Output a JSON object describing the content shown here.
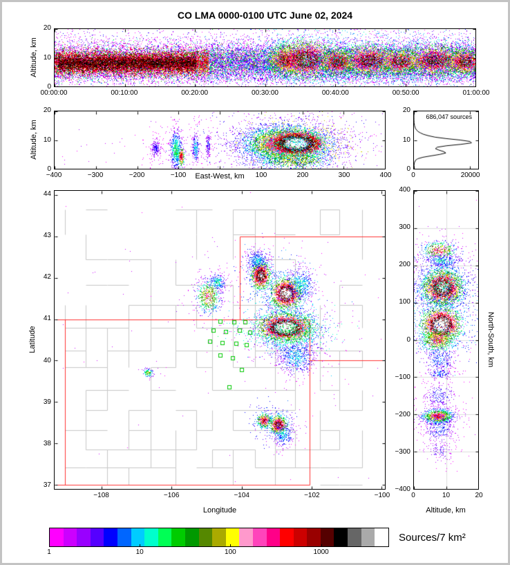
{
  "title": "CO LMA 0000-0100 UTC June 02, 2024",
  "chart_data": {
    "type": "scatter",
    "total_sources": "686,047",
    "palette": [
      "#ff00ff",
      "#cc00ff",
      "#9900ff",
      "#5500ff",
      "#0000ff",
      "#0066ff",
      "#00ccff",
      "#00ffcc",
      "#00ff55",
      "#00cc00",
      "#009900",
      "#558800",
      "#aaaa00",
      "#ffff00",
      "#ff99cc",
      "#ff44bb",
      "#ff0088",
      "#ff0000",
      "#cc0000",
      "#990000",
      "#550000",
      "#000000",
      "#666666",
      "#aaaaaa",
      "#ffffff"
    ],
    "colorbar": {
      "label": "Sources/7 km²",
      "tick_values": [
        1,
        10,
        100,
        1000
      ],
      "tick_labels": [
        "1",
        "10",
        "100",
        "1000"
      ],
      "log_max": 5623
    },
    "panels": {
      "time_height": {
        "ylabel": "Altitude, km",
        "xlim": [
          0,
          3600
        ],
        "ylim": [
          0,
          20
        ],
        "xticks": {
          "values": [
            0,
            600,
            1200,
            1800,
            2400,
            3000,
            3600
          ],
          "labels": [
            "00:00:00",
            "00:10:00",
            "00:20:00",
            "00:30:00",
            "00:40:00",
            "00:50:00",
            "01:00:00"
          ]
        },
        "yticks": {
          "values": [
            0,
            10,
            20
          ],
          "labels": [
            "0",
            "10",
            "20"
          ]
        },
        "clusters": [
          {
            "k": "u",
            "n": 14000,
            "x": 1800,
            "sx": 1800,
            "y": 8.3,
            "sy": 3.2,
            "lo": 0,
            "hi": 0.4,
            "pw": 2.4
          },
          {
            "k": "u",
            "n": 4500,
            "x": 1800,
            "sx": 1800,
            "y": 10,
            "sy": 4.8,
            "lo": 0,
            "hi": 0.16,
            "pw": 1.5
          },
          {
            "k": "u",
            "n": 1500,
            "x": 1800,
            "sx": 1800,
            "y": 4,
            "sy": 1.5,
            "lo": 0,
            "hi": 0.3,
            "pw": 2
          },
          {
            "k": "u",
            "n": 11000,
            "x": 660,
            "sx": 660,
            "y": 8.2,
            "sy": 2.1,
            "lo": 0.28,
            "hi": 0.8,
            "pw": 0.75
          },
          {
            "k": "u",
            "n": 8000,
            "x": 620,
            "sx": 590,
            "y": 8.1,
            "sy": 1.3,
            "lo": 0.6,
            "hi": 0.9,
            "pw": 0.9
          },
          {
            "k": "u",
            "n": 6000,
            "x": 2460,
            "sx": 1140,
            "y": 8.6,
            "sy": 2.7,
            "lo": 0.06,
            "hi": 0.6,
            "pw": 1.7
          },
          {
            "k": "g",
            "n": 1600,
            "x": 1980,
            "y": 9.2,
            "sx": 80,
            "sy": 2.6,
            "lo": 0.15,
            "hi": 0.75
          },
          {
            "k": "g",
            "n": 2200,
            "x": 2150,
            "y": 9.4,
            "sx": 110,
            "sy": 2.9,
            "lo": 0.2,
            "hi": 0.85
          },
          {
            "k": "g",
            "n": 1400,
            "x": 2420,
            "y": 8.4,
            "sx": 70,
            "sy": 2.2,
            "lo": 0.15,
            "hi": 0.8
          },
          {
            "k": "g",
            "n": 1900,
            "x": 2690,
            "y": 9,
            "sx": 110,
            "sy": 2.4,
            "lo": 0.2,
            "hi": 0.8
          },
          {
            "k": "g",
            "n": 1400,
            "x": 2950,
            "y": 8.7,
            "sx": 85,
            "sy": 2.2,
            "lo": 0.15,
            "hi": 0.78
          },
          {
            "k": "g",
            "n": 2000,
            "x": 3260,
            "y": 9,
            "sx": 130,
            "sy": 2.4,
            "lo": 0.2,
            "hi": 0.8
          },
          {
            "k": "g",
            "n": 1300,
            "x": 3510,
            "y": 8.6,
            "sx": 75,
            "sy": 2.1,
            "lo": 0.15,
            "hi": 0.8
          }
        ]
      },
      "east_west": {
        "xlabel": "East-West, km",
        "ylabel": "Altitude, km",
        "xlim": [
          -400,
          400
        ],
        "ylim": [
          0,
          20
        ],
        "xticks": {
          "values": [
            -400,
            -300,
            -200,
            -100,
            0,
            100,
            200,
            300,
            400
          ],
          "labels": [
            "−400",
            "−300",
            "−200",
            "−100",
            "",
            "100",
            "200",
            "300",
            "400"
          ]
        },
        "yticks": {
          "values": [
            0,
            10,
            20
          ],
          "labels": [
            "0",
            "10",
            "20"
          ]
        },
        "clusters": [
          {
            "k": "u",
            "n": 60,
            "x": 0,
            "sx": 390,
            "y": 8,
            "sy": 3.5,
            "lo": 0,
            "hi": 0.08,
            "pw": 1
          },
          {
            "k": "g",
            "n": 220,
            "x": -155,
            "y": 7,
            "sx": 6,
            "sy": 1.6,
            "lo": 0,
            "hi": 0.14
          },
          {
            "k": "g",
            "n": 650,
            "x": -106,
            "y": 6.5,
            "sx": 7,
            "sy": 3.2,
            "lo": 0,
            "hi": 0.32
          },
          {
            "k": "g",
            "n": 280,
            "x": -93,
            "y": 4.2,
            "sx": 3,
            "sy": 1.3,
            "lo": 0.2,
            "hi": 0.72
          },
          {
            "k": "g",
            "n": 220,
            "x": -58,
            "y": 7,
            "sx": 4,
            "sy": 2.6,
            "lo": 0,
            "hi": 0.26
          },
          {
            "k": "g",
            "n": 130,
            "x": -28,
            "y": 8.5,
            "sx": 3,
            "sy": 2,
            "lo": 0,
            "hi": 0.16
          },
          {
            "k": "g",
            "n": 5500,
            "x": 163,
            "y": 8.6,
            "sx": 45,
            "sy": 2.7,
            "lo": 0.06,
            "hi": 0.76
          },
          {
            "k": "g",
            "n": 4500,
            "x": 186,
            "y": 8.8,
            "sx": 27,
            "sy": 1.8,
            "lo": 0.5,
            "hi": 1
          },
          {
            "k": "g",
            "n": 1400,
            "x": 158,
            "y": 8,
            "sx": 68,
            "sy": 4.3,
            "lo": 0,
            "hi": 0.3
          },
          {
            "k": "g",
            "n": 700,
            "x": 180,
            "y": 3,
            "sx": 42,
            "sy": 1.6,
            "lo": 0.1,
            "hi": 0.5
          }
        ]
      },
      "histogram": {
        "annotation": "686,047 sources",
        "xlim": [
          0,
          23000
        ],
        "ylim": [
          0,
          20
        ],
        "xticks": {
          "values": [
            0,
            20000
          ],
          "labels": [
            "0",
            "20000"
          ]
        },
        "yticks": {
          "values": [
            0,
            10,
            20
          ],
          "labels": [
            "0",
            "10",
            "20"
          ]
        },
        "curve": [
          [
            0,
            0
          ],
          [
            1,
            30
          ],
          [
            2,
            120
          ],
          [
            3,
            600
          ],
          [
            3.5,
            1400
          ],
          [
            4,
            3200
          ],
          [
            4.5,
            6200
          ],
          [
            5,
            9300
          ],
          [
            5.5,
            11400
          ],
          [
            6,
            10600
          ],
          [
            6.5,
            8900
          ],
          [
            7,
            7700
          ],
          [
            7.5,
            8300
          ],
          [
            8,
            11600
          ],
          [
            8.5,
            16800
          ],
          [
            9,
            20600
          ],
          [
            9.5,
            20100
          ],
          [
            10,
            16600
          ],
          [
            10.5,
            11600
          ],
          [
            11,
            7600
          ],
          [
            11.5,
            5200
          ],
          [
            12,
            3400
          ],
          [
            12.5,
            2300
          ],
          [
            13,
            1400
          ],
          [
            14,
            560
          ],
          [
            15,
            210
          ],
          [
            16,
            60
          ],
          [
            17,
            15
          ],
          [
            18,
            3
          ],
          [
            20,
            0
          ]
        ]
      },
      "map": {
        "xlabel": "Longitude",
        "ylabel": "Latitude",
        "xlim": [
          -109.35,
          -99.9
        ],
        "ylim": [
          36.9,
          44.1
        ],
        "xticks": {
          "values": [
            -108,
            -106,
            -104,
            -102,
            -100
          ],
          "labels": [
            "−108",
            "−106",
            "−104",
            "−102",
            "−100"
          ]
        },
        "yticks": {
          "values": [
            37,
            38,
            39,
            40,
            41,
            42,
            43,
            44
          ],
          "labels": [
            "37",
            "38",
            "39",
            "40",
            "41",
            "42",
            "43",
            "44"
          ]
        },
        "state_color": "#ff3232",
        "county_color": "#c6c6c6",
        "county_seed": 11,
        "state_lines": [
          [
            -109.35,
            41,
            -102.05,
            41
          ],
          [
            -109.35,
            37,
            -102.05,
            37
          ],
          [
            -109.05,
            37,
            -109.05,
            41
          ],
          [
            -102.05,
            37,
            -102.05,
            41
          ],
          [
            -104.05,
            41,
            -104.05,
            43
          ],
          [
            -104.05,
            43,
            -99.9,
            43
          ],
          [
            -102.05,
            40,
            -99.9,
            40
          ]
        ],
        "station_color": "#00c800",
        "stations": [
          [
            -104.6,
            40.95
          ],
          [
            -104.2,
            40.93
          ],
          [
            -103.9,
            40.92
          ],
          [
            -104.8,
            40.72
          ],
          [
            -104.45,
            40.7
          ],
          [
            -104.05,
            40.73
          ],
          [
            -103.75,
            40.68
          ],
          [
            -104.9,
            40.45
          ],
          [
            -104.55,
            40.42
          ],
          [
            -104.15,
            40.4
          ],
          [
            -103.85,
            40.38
          ],
          [
            -104.6,
            40.12
          ],
          [
            -104.25,
            40.05
          ],
          [
            -104.0,
            39.78
          ],
          [
            -104.35,
            39.35
          ]
        ],
        "clusters": [
          {
            "k": "u",
            "n": 60,
            "x": -104.6,
            "sx": 4.6,
            "y": 40.5,
            "sy": 2.4,
            "lo": 0,
            "hi": 0.06,
            "pw": 1
          },
          {
            "k": "g",
            "n": 600,
            "x": -104.95,
            "y": 41.55,
            "sx": 0.17,
            "sy": 0.2,
            "lo": 0,
            "hi": 0.55
          },
          {
            "k": "g",
            "n": 220,
            "x": -104.68,
            "y": 41.9,
            "sx": 0.12,
            "sy": 0.1,
            "lo": 0,
            "hi": 0.3
          },
          {
            "k": "g",
            "n": 1400,
            "x": -103.45,
            "y": 42.05,
            "sx": 0.13,
            "sy": 0.15,
            "lo": 0.1,
            "hi": 0.85
          },
          {
            "k": "g",
            "n": 350,
            "x": -103.55,
            "y": 42.42,
            "sx": 0.16,
            "sy": 0.12,
            "lo": 0,
            "hi": 0.25
          },
          {
            "k": "g",
            "n": 2300,
            "x": -102.72,
            "y": 41.62,
            "sx": 0.19,
            "sy": 0.16,
            "lo": 0.15,
            "hi": 0.95
          },
          {
            "k": "g",
            "n": 450,
            "x": -102.3,
            "y": 41.85,
            "sx": 0.2,
            "sy": 0.2,
            "lo": 0,
            "hi": 0.28
          },
          {
            "k": "g",
            "n": 4200,
            "x": -102.75,
            "y": 40.8,
            "sx": 0.32,
            "sy": 0.14,
            "lo": 0.2,
            "hi": 1
          },
          {
            "k": "g",
            "n": 1100,
            "x": -102.6,
            "y": 40.68,
            "sx": 0.5,
            "sy": 0.3,
            "lo": 0,
            "hi": 0.35
          },
          {
            "k": "g",
            "n": 550,
            "x": -102.45,
            "y": 40.05,
            "sx": 0.26,
            "sy": 0.2,
            "lo": 0,
            "hi": 0.25
          },
          {
            "k": "g",
            "n": 110,
            "x": -106.68,
            "y": 39.7,
            "sx": 0.07,
            "sy": 0.05,
            "lo": 0,
            "hi": 0.45
          },
          {
            "k": "g",
            "n": 450,
            "x": -103.35,
            "y": 38.55,
            "sx": 0.1,
            "sy": 0.08,
            "lo": 0.1,
            "hi": 0.7
          },
          {
            "k": "g",
            "n": 800,
            "x": -102.95,
            "y": 38.45,
            "sx": 0.12,
            "sy": 0.1,
            "lo": 0.1,
            "hi": 0.8
          },
          {
            "k": "g",
            "n": 260,
            "x": -102.8,
            "y": 38.2,
            "sx": 0.15,
            "sy": 0.14,
            "lo": 0,
            "hi": 0.25
          }
        ]
      },
      "north_south": {
        "xlabel": "Altitude, km",
        "ylabel_right": "North-South, km",
        "xlim": [
          0,
          20
        ],
        "ylim": [
          -400,
          400
        ],
        "xticks": {
          "values": [
            0,
            10,
            20
          ],
          "labels": [
            "0",
            "10",
            "20"
          ]
        },
        "yticks": {
          "values": [
            -400,
            -300,
            -200,
            -100,
            0,
            100,
            200,
            300,
            400
          ],
          "labels": [
            "−400",
            "−300",
            "−200",
            "−100",
            "0",
            "100",
            "200",
            "300",
            "400"
          ]
        },
        "grid": {
          "h": [
            -300,
            -200,
            -100,
            0,
            100,
            200,
            300
          ],
          "v": [
            10
          ],
          "color": "#dcdcdc"
        },
        "clusters": [
          {
            "k": "g",
            "n": 450,
            "x": 8,
            "y": 240,
            "sx": 2.6,
            "sy": 12,
            "lo": 0,
            "hi": 0.6
          },
          {
            "k": "g",
            "n": 260,
            "x": 9,
            "y": 212,
            "sx": 3,
            "sy": 8,
            "lo": 0,
            "hi": 0.28
          },
          {
            "k": "g",
            "n": 3200,
            "x": 9,
            "y": 140,
            "sx": 2.8,
            "sy": 22,
            "lo": 0.1,
            "hi": 0.9
          },
          {
            "k": "g",
            "n": 750,
            "x": 9,
            "y": 150,
            "sx": 4.5,
            "sy": 40,
            "lo": 0,
            "hi": 0.3
          },
          {
            "k": "g",
            "n": 2800,
            "x": 8.5,
            "y": 40,
            "sx": 2.6,
            "sy": 20,
            "lo": 0.15,
            "hi": 1
          },
          {
            "k": "g",
            "n": 800,
            "x": 7.5,
            "y": 0,
            "sx": 2.5,
            "sy": 14,
            "lo": 0.1,
            "hi": 0.6
          },
          {
            "k": "g",
            "n": 260,
            "x": 8,
            "y": -55,
            "sx": 2.5,
            "sy": 18,
            "lo": 0,
            "hi": 0.2
          },
          {
            "k": "g",
            "n": 130,
            "x": 8,
            "y": -90,
            "sx": 2,
            "sy": 8,
            "lo": 0,
            "hi": 0.2
          },
          {
            "k": "g",
            "n": 220,
            "x": 8,
            "y": -150,
            "sx": 2.5,
            "sy": 16,
            "lo": 0,
            "hi": 0.17
          },
          {
            "k": "g",
            "n": 1100,
            "x": 7.5,
            "y": -205,
            "sx": 2.3,
            "sy": 9,
            "lo": 0,
            "hi": 0.62
          },
          {
            "k": "g",
            "n": 350,
            "x": 8,
            "y": -235,
            "sx": 2.5,
            "sy": 22,
            "lo": 0,
            "hi": 0.18
          },
          {
            "k": "g",
            "n": 110,
            "x": 8,
            "y": -300,
            "sx": 2,
            "sy": 14,
            "lo": 0,
            "hi": 0.14
          }
        ]
      }
    }
  }
}
